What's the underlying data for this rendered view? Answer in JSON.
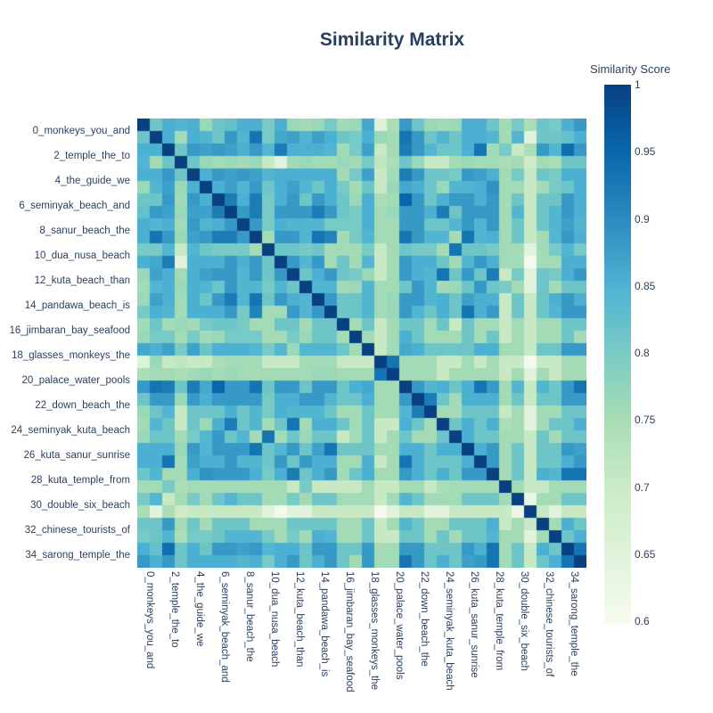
{
  "title": "Similarity Matrix",
  "colorbar": {
    "title": "Similarity Score",
    "ticks": [
      "1",
      "0.95",
      "0.9",
      "0.85",
      "0.8",
      "0.75",
      "0.7",
      "0.65",
      "0.6"
    ]
  },
  "chart_data": {
    "type": "heatmap",
    "title": "Similarity Matrix",
    "legend_title": "Similarity Score",
    "grid": false,
    "colorbar_range": [
      1.0,
      0.6
    ],
    "vmin": 0.59,
    "vmax": 1.0,
    "colorscale": [
      "#f7fcf0",
      "#e0f3db",
      "#ccebc5",
      "#a8ddb5",
      "#7bccc4",
      "#4eb3d3",
      "#2b8cbe",
      "#0868ac",
      "#084081"
    ],
    "tick_labels": [
      "0_monkeys_you_and",
      "2_temple_the_to",
      "4_the_guide_we",
      "6_seminyak_beach_and",
      "8_sanur_beach_the",
      "10_dua_nusa_beach",
      "12_kuta_beach_than",
      "14_pandawa_beach_is",
      "16_jimbaran_bay_seafood",
      "18_glasses_monkeys_the",
      "20_palace_water_pools",
      "22_down_beach_the",
      "24_seminyak_kuta_beach",
      "26_kuta_sanur_sunrise",
      "28_kuta_temple_from",
      "30_double_six_beach",
      "32_chinese_tourists_of",
      "34_sarong_temple_the"
    ],
    "label_step": 2,
    "matrix": [
      [
        1.0,
        0.81,
        0.85,
        0.84,
        0.85,
        0.76,
        0.81,
        0.82,
        0.85,
        0.85,
        0.8,
        0.85,
        0.76,
        0.75,
        0.76,
        0.8,
        0.75,
        0.76,
        0.86,
        0.65,
        0.74,
        0.88,
        0.81,
        0.76,
        0.75,
        0.76,
        0.85,
        0.85,
        0.81,
        0.75,
        0.8,
        0.74,
        0.81,
        0.8,
        0.85,
        0.88
      ],
      [
        0.81,
        1.0,
        0.85,
        0.75,
        0.85,
        0.84,
        0.81,
        0.88,
        0.84,
        0.93,
        0.8,
        0.86,
        0.87,
        0.84,
        0.87,
        0.85,
        0.81,
        0.8,
        0.85,
        0.76,
        0.75,
        0.93,
        0.88,
        0.81,
        0.84,
        0.81,
        0.85,
        0.85,
        0.84,
        0.75,
        0.84,
        0.64,
        0.81,
        0.81,
        0.82,
        0.85
      ],
      [
        0.85,
        0.85,
        1.0,
        0.81,
        0.88,
        0.87,
        0.88,
        0.87,
        0.85,
        0.88,
        0.84,
        0.92,
        0.85,
        0.85,
        0.85,
        0.84,
        0.75,
        0.8,
        0.87,
        0.7,
        0.75,
        0.92,
        0.88,
        0.84,
        0.81,
        0.81,
        0.85,
        0.93,
        0.75,
        0.8,
        0.7,
        0.74,
        0.88,
        0.84,
        0.94,
        0.88
      ],
      [
        0.84,
        0.75,
        0.81,
        1.0,
        0.81,
        0.76,
        0.75,
        0.76,
        0.75,
        0.76,
        0.7,
        0.64,
        0.75,
        0.76,
        0.75,
        0.75,
        0.76,
        0.75,
        0.8,
        0.71,
        0.74,
        0.81,
        0.76,
        0.7,
        0.7,
        0.75,
        0.76,
        0.75,
        0.75,
        0.74,
        0.75,
        0.69,
        0.75,
        0.74,
        0.81,
        0.81
      ],
      [
        0.85,
        0.85,
        0.88,
        0.81,
        1.0,
        0.85,
        0.88,
        0.87,
        0.88,
        0.87,
        0.84,
        0.85,
        0.85,
        0.85,
        0.85,
        0.85,
        0.75,
        0.8,
        0.87,
        0.7,
        0.75,
        0.92,
        0.88,
        0.81,
        0.81,
        0.8,
        0.88,
        0.87,
        0.85,
        0.75,
        0.8,
        0.7,
        0.81,
        0.8,
        0.85,
        0.85
      ],
      [
        0.76,
        0.84,
        0.87,
        0.76,
        0.85,
        1.0,
        0.85,
        0.87,
        0.84,
        0.88,
        0.81,
        0.85,
        0.87,
        0.84,
        0.81,
        0.85,
        0.8,
        0.75,
        0.81,
        0.7,
        0.76,
        0.86,
        0.85,
        0.81,
        0.76,
        0.84,
        0.84,
        0.85,
        0.89,
        0.75,
        0.75,
        0.7,
        0.75,
        0.8,
        0.81,
        0.85
      ],
      [
        0.81,
        0.81,
        0.88,
        0.75,
        0.88,
        0.85,
        1.0,
        0.92,
        0.85,
        0.92,
        0.8,
        0.85,
        0.88,
        0.81,
        0.88,
        0.85,
        0.81,
        0.76,
        0.85,
        0.74,
        0.75,
        0.95,
        0.88,
        0.81,
        0.85,
        0.88,
        0.88,
        0.85,
        0.88,
        0.75,
        0.81,
        0.7,
        0.81,
        0.81,
        0.88,
        0.85
      ],
      [
        0.82,
        0.88,
        0.87,
        0.76,
        0.87,
        0.87,
        0.92,
        1.0,
        0.88,
        0.92,
        0.8,
        0.88,
        0.88,
        0.88,
        0.92,
        0.88,
        0.81,
        0.8,
        0.85,
        0.75,
        0.76,
        0.88,
        0.88,
        0.85,
        0.92,
        0.81,
        0.88,
        0.88,
        0.88,
        0.75,
        0.84,
        0.7,
        0.81,
        0.84,
        0.88,
        0.85
      ],
      [
        0.85,
        0.84,
        0.85,
        0.75,
        0.88,
        0.84,
        0.85,
        0.88,
        1.0,
        0.88,
        0.8,
        0.85,
        0.84,
        0.84,
        0.84,
        0.8,
        0.8,
        0.8,
        0.85,
        0.75,
        0.75,
        0.88,
        0.88,
        0.81,
        0.81,
        0.84,
        0.88,
        0.84,
        0.88,
        0.75,
        0.81,
        0.7,
        0.81,
        0.84,
        0.87,
        0.84
      ],
      [
        0.85,
        0.93,
        0.88,
        0.76,
        0.87,
        0.88,
        0.92,
        0.92,
        0.88,
        1.0,
        0.75,
        0.88,
        0.88,
        0.84,
        0.93,
        0.91,
        0.75,
        0.8,
        0.84,
        0.75,
        0.75,
        0.93,
        0.88,
        0.84,
        0.84,
        0.75,
        0.93,
        0.84,
        0.85,
        0.75,
        0.81,
        0.7,
        0.75,
        0.84,
        0.88,
        0.85
      ],
      [
        0.8,
        0.8,
        0.84,
        0.7,
        0.84,
        0.81,
        0.8,
        0.8,
        0.8,
        0.75,
        1.0,
        0.81,
        0.81,
        0.8,
        0.81,
        0.75,
        0.75,
        0.75,
        0.8,
        0.7,
        0.75,
        0.81,
        0.8,
        0.8,
        0.75,
        0.93,
        0.81,
        0.81,
        0.8,
        0.75,
        0.75,
        0.64,
        0.75,
        0.8,
        0.84,
        0.8
      ],
      [
        0.85,
        0.86,
        0.92,
        0.64,
        0.85,
        0.85,
        0.85,
        0.88,
        0.85,
        0.88,
        0.81,
        1.0,
        0.88,
        0.84,
        0.88,
        0.75,
        0.81,
        0.75,
        0.84,
        0.7,
        0.75,
        0.88,
        0.85,
        0.85,
        0.81,
        0.75,
        0.84,
        0.88,
        0.85,
        0.75,
        0.75,
        0.6,
        0.75,
        0.75,
        0.85,
        0.85
      ],
      [
        0.76,
        0.87,
        0.85,
        0.75,
        0.85,
        0.87,
        0.88,
        0.88,
        0.84,
        0.88,
        0.81,
        0.88,
        1.0,
        0.81,
        0.85,
        0.88,
        0.81,
        0.8,
        0.76,
        0.7,
        0.75,
        0.88,
        0.85,
        0.84,
        0.93,
        0.81,
        0.88,
        0.81,
        0.92,
        0.7,
        0.8,
        0.64,
        0.81,
        0.8,
        0.85,
        0.88
      ],
      [
        0.75,
        0.84,
        0.85,
        0.76,
        0.85,
        0.84,
        0.81,
        0.88,
        0.84,
        0.84,
        0.8,
        0.84,
        0.81,
        1.0,
        0.84,
        0.84,
        0.75,
        0.76,
        0.84,
        0.75,
        0.75,
        0.81,
        0.88,
        0.84,
        0.75,
        0.76,
        0.81,
        0.88,
        0.81,
        0.8,
        0.75,
        0.64,
        0.81,
        0.75,
        0.81,
        0.81
      ],
      [
        0.76,
        0.87,
        0.85,
        0.75,
        0.85,
        0.81,
        0.88,
        0.92,
        0.84,
        0.93,
        0.81,
        0.88,
        0.85,
        0.84,
        1.0,
        0.88,
        0.81,
        0.81,
        0.84,
        0.75,
        0.76,
        0.88,
        0.88,
        0.84,
        0.85,
        0.81,
        0.87,
        0.85,
        0.85,
        0.7,
        0.81,
        0.7,
        0.81,
        0.85,
        0.88,
        0.85
      ],
      [
        0.8,
        0.85,
        0.84,
        0.75,
        0.85,
        0.85,
        0.85,
        0.88,
        0.8,
        0.91,
        0.75,
        0.75,
        0.88,
        0.84,
        0.88,
        1.0,
        0.81,
        0.81,
        0.84,
        0.75,
        0.76,
        0.88,
        0.84,
        0.81,
        0.85,
        0.81,
        0.93,
        0.85,
        0.88,
        0.7,
        0.81,
        0.7,
        0.81,
        0.84,
        0.88,
        0.88
      ],
      [
        0.75,
        0.81,
        0.75,
        0.76,
        0.75,
        0.8,
        0.81,
        0.81,
        0.8,
        0.75,
        0.75,
        0.81,
        0.81,
        0.75,
        0.81,
        0.81,
        1.0,
        0.75,
        0.81,
        0.7,
        0.75,
        0.81,
        0.81,
        0.75,
        0.81,
        0.7,
        0.81,
        0.75,
        0.75,
        0.7,
        0.75,
        0.7,
        0.75,
        0.75,
        0.81,
        0.81
      ],
      [
        0.76,
        0.8,
        0.8,
        0.75,
        0.8,
        0.75,
        0.76,
        0.8,
        0.8,
        0.8,
        0.75,
        0.75,
        0.8,
        0.76,
        0.81,
        0.81,
        0.75,
        1.0,
        0.75,
        0.7,
        0.75,
        0.85,
        0.81,
        0.75,
        0.75,
        0.75,
        0.81,
        0.75,
        0.81,
        0.7,
        0.75,
        0.7,
        0.75,
        0.75,
        0.81,
        0.75
      ],
      [
        0.86,
        0.85,
        0.87,
        0.8,
        0.87,
        0.81,
        0.85,
        0.85,
        0.85,
        0.84,
        0.8,
        0.84,
        0.76,
        0.84,
        0.84,
        0.84,
        0.81,
        0.75,
        1.0,
        0.7,
        0.75,
        0.86,
        0.85,
        0.81,
        0.81,
        0.81,
        0.81,
        0.85,
        0.85,
        0.75,
        0.75,
        0.7,
        0.81,
        0.81,
        0.88,
        0.88
      ],
      [
        0.65,
        0.76,
        0.7,
        0.71,
        0.7,
        0.7,
        0.74,
        0.75,
        0.75,
        0.75,
        0.7,
        0.7,
        0.7,
        0.75,
        0.75,
        0.75,
        0.7,
        0.7,
        0.7,
        1.0,
        0.93,
        0.75,
        0.75,
        0.75,
        0.7,
        0.7,
        0.75,
        0.7,
        0.75,
        0.7,
        0.7,
        0.6,
        0.7,
        0.7,
        0.75,
        0.75
      ],
      [
        0.74,
        0.75,
        0.75,
        0.74,
        0.75,
        0.76,
        0.75,
        0.76,
        0.75,
        0.75,
        0.75,
        0.75,
        0.75,
        0.75,
        0.76,
        0.76,
        0.75,
        0.75,
        0.75,
        0.93,
        1.0,
        0.75,
        0.75,
        0.75,
        0.7,
        0.75,
        0.75,
        0.75,
        0.75,
        0.7,
        0.75,
        0.64,
        0.75,
        0.7,
        0.75,
        0.75
      ],
      [
        0.88,
        0.93,
        0.92,
        0.81,
        0.92,
        0.86,
        0.95,
        0.88,
        0.88,
        0.93,
        0.81,
        0.88,
        0.88,
        0.81,
        0.88,
        0.88,
        0.81,
        0.85,
        0.86,
        0.75,
        0.75,
        1.0,
        0.88,
        0.84,
        0.85,
        0.81,
        0.85,
        0.93,
        0.88,
        0.75,
        0.84,
        0.7,
        0.84,
        0.81,
        0.88,
        0.93
      ],
      [
        0.81,
        0.88,
        0.88,
        0.76,
        0.88,
        0.85,
        0.88,
        0.88,
        0.88,
        0.88,
        0.8,
        0.85,
        0.85,
        0.88,
        0.88,
        0.84,
        0.81,
        0.81,
        0.85,
        0.75,
        0.75,
        0.88,
        1.0,
        0.92,
        0.81,
        0.75,
        0.85,
        0.85,
        0.85,
        0.75,
        0.81,
        0.7,
        0.81,
        0.81,
        0.88,
        0.88
      ],
      [
        0.76,
        0.81,
        0.84,
        0.7,
        0.81,
        0.81,
        0.81,
        0.85,
        0.81,
        0.84,
        0.8,
        0.85,
        0.84,
        0.84,
        0.84,
        0.81,
        0.75,
        0.75,
        0.81,
        0.75,
        0.75,
        0.84,
        0.92,
        1.0,
        0.75,
        0.75,
        0.81,
        0.81,
        0.81,
        0.7,
        0.75,
        0.64,
        0.75,
        0.75,
        0.81,
        0.81
      ],
      [
        0.75,
        0.84,
        0.81,
        0.7,
        0.81,
        0.76,
        0.85,
        0.92,
        0.81,
        0.84,
        0.75,
        0.81,
        0.93,
        0.75,
        0.85,
        0.85,
        0.81,
        0.75,
        0.81,
        0.7,
        0.7,
        0.85,
        0.81,
        0.75,
        1.0,
        0.81,
        0.85,
        0.81,
        0.85,
        0.74,
        0.75,
        0.64,
        0.75,
        0.81,
        0.81,
        0.85
      ],
      [
        0.76,
        0.81,
        0.81,
        0.75,
        0.8,
        0.84,
        0.88,
        0.81,
        0.84,
        0.75,
        0.93,
        0.75,
        0.81,
        0.76,
        0.81,
        0.81,
        0.7,
        0.75,
        0.81,
        0.7,
        0.75,
        0.81,
        0.75,
        0.75,
        0.81,
        1.0,
        0.85,
        0.81,
        0.81,
        0.75,
        0.75,
        0.7,
        0.81,
        0.75,
        0.81,
        0.81
      ],
      [
        0.85,
        0.85,
        0.85,
        0.76,
        0.88,
        0.84,
        0.88,
        0.88,
        0.88,
        0.93,
        0.81,
        0.84,
        0.88,
        0.81,
        0.87,
        0.93,
        0.81,
        0.81,
        0.81,
        0.75,
        0.75,
        0.85,
        0.85,
        0.81,
        0.85,
        0.85,
        1.0,
        0.85,
        0.88,
        0.75,
        0.81,
        0.7,
        0.81,
        0.81,
        0.88,
        0.87
      ],
      [
        0.85,
        0.85,
        0.93,
        0.75,
        0.87,
        0.85,
        0.85,
        0.88,
        0.84,
        0.84,
        0.81,
        0.88,
        0.81,
        0.88,
        0.85,
        0.85,
        0.75,
        0.75,
        0.85,
        0.7,
        0.75,
        0.93,
        0.85,
        0.81,
        0.81,
        0.81,
        0.85,
        1.0,
        0.88,
        0.75,
        0.81,
        0.7,
        0.81,
        0.81,
        0.85,
        0.88
      ],
      [
        0.81,
        0.84,
        0.75,
        0.75,
        0.85,
        0.89,
        0.88,
        0.88,
        0.88,
        0.85,
        0.8,
        0.85,
        0.92,
        0.81,
        0.85,
        0.88,
        0.75,
        0.81,
        0.85,
        0.75,
        0.75,
        0.88,
        0.85,
        0.81,
        0.85,
        0.81,
        0.88,
        0.88,
        1.0,
        0.75,
        0.81,
        0.7,
        0.85,
        0.84,
        0.93,
        0.93
      ],
      [
        0.75,
        0.75,
        0.8,
        0.74,
        0.75,
        0.75,
        0.75,
        0.75,
        0.75,
        0.75,
        0.75,
        0.75,
        0.7,
        0.8,
        0.7,
        0.7,
        0.7,
        0.7,
        0.75,
        0.7,
        0.7,
        0.75,
        0.75,
        0.7,
        0.74,
        0.75,
        0.75,
        0.75,
        0.75,
        1.0,
        0.75,
        0.7,
        0.7,
        0.75,
        0.75,
        0.75
      ],
      [
        0.8,
        0.84,
        0.7,
        0.75,
        0.8,
        0.75,
        0.81,
        0.84,
        0.81,
        0.81,
        0.75,
        0.75,
        0.8,
        0.75,
        0.81,
        0.81,
        0.75,
        0.75,
        0.75,
        0.7,
        0.75,
        0.84,
        0.81,
        0.75,
        0.75,
        0.75,
        0.81,
        0.81,
        0.81,
        0.75,
        1.0,
        0.62,
        0.75,
        0.75,
        0.81,
        0.81
      ],
      [
        0.74,
        0.64,
        0.74,
        0.69,
        0.7,
        0.7,
        0.7,
        0.7,
        0.7,
        0.7,
        0.64,
        0.6,
        0.64,
        0.64,
        0.7,
        0.7,
        0.7,
        0.7,
        0.7,
        0.6,
        0.64,
        0.7,
        0.7,
        0.64,
        0.64,
        0.7,
        0.7,
        0.7,
        0.7,
        0.7,
        0.62,
        1.0,
        0.7,
        0.64,
        0.7,
        0.7
      ],
      [
        0.81,
        0.81,
        0.88,
        0.75,
        0.81,
        0.75,
        0.81,
        0.81,
        0.81,
        0.75,
        0.75,
        0.75,
        0.81,
        0.81,
        0.81,
        0.81,
        0.75,
        0.75,
        0.81,
        0.7,
        0.75,
        0.84,
        0.81,
        0.75,
        0.75,
        0.81,
        0.81,
        0.81,
        0.85,
        0.7,
        0.75,
        0.7,
        1.0,
        0.75,
        0.85,
        0.81
      ],
      [
        0.8,
        0.81,
        0.84,
        0.74,
        0.8,
        0.8,
        0.81,
        0.84,
        0.84,
        0.84,
        0.8,
        0.75,
        0.8,
        0.75,
        0.85,
        0.84,
        0.75,
        0.75,
        0.81,
        0.7,
        0.7,
        0.81,
        0.81,
        0.75,
        0.81,
        0.75,
        0.81,
        0.81,
        0.84,
        0.75,
        0.75,
        0.64,
        0.75,
        1.0,
        0.81,
        0.85
      ],
      [
        0.85,
        0.82,
        0.94,
        0.81,
        0.85,
        0.81,
        0.88,
        0.88,
        0.87,
        0.88,
        0.84,
        0.85,
        0.85,
        0.81,
        0.88,
        0.88,
        0.81,
        0.81,
        0.88,
        0.75,
        0.75,
        0.88,
        0.88,
        0.81,
        0.81,
        0.81,
        0.88,
        0.85,
        0.93,
        0.75,
        0.81,
        0.7,
        0.85,
        0.81,
        1.0,
        0.93
      ],
      [
        0.88,
        0.85,
        0.88,
        0.81,
        0.85,
        0.85,
        0.85,
        0.85,
        0.84,
        0.85,
        0.8,
        0.85,
        0.88,
        0.81,
        0.85,
        0.88,
        0.81,
        0.75,
        0.88,
        0.75,
        0.75,
        0.93,
        0.88,
        0.81,
        0.85,
        0.81,
        0.87,
        0.88,
        0.93,
        0.75,
        0.81,
        0.7,
        0.81,
        0.85,
        0.93,
        1.0
      ]
    ]
  }
}
